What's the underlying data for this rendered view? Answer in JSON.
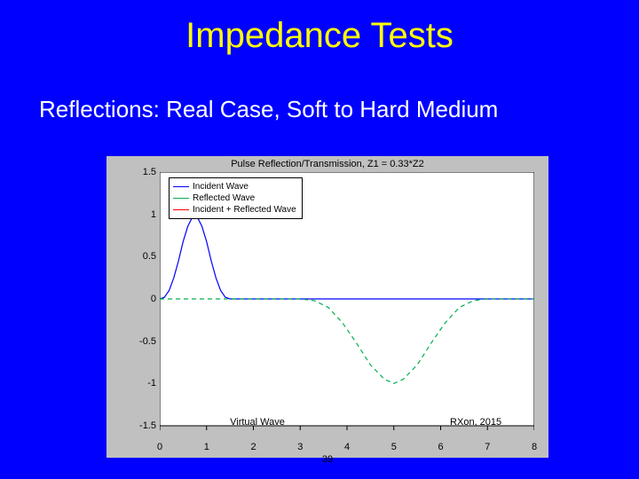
{
  "slide": {
    "background_color": "#0000ff",
    "title": "Impedance Tests",
    "title_color": "#ffff00",
    "subtitle": "Reflections: Real Case, Soft to Hard Medium",
    "subtitle_color": "#ffffff"
  },
  "figure": {
    "background_color": "#c0c0c0",
    "plot_background_color": "#ffffff",
    "axis_color": "#000000",
    "title": "Pulse Reflection/Transmission, Z1 = 0.33*Z2",
    "title_color": "#000000",
    "xlim": [
      0,
      8
    ],
    "ylim": [
      -1.5,
      1.5
    ],
    "xticks": [
      0,
      1,
      2,
      3,
      4,
      5,
      6,
      7,
      8
    ],
    "yticks": [
      -1.5,
      -1,
      -0.5,
      0,
      0.5,
      1,
      1.5
    ],
    "xlabel": "39",
    "legend": {
      "box_color": "#000000",
      "items": [
        {
          "label": "Incident Wave",
          "color": "#0000ff"
        },
        {
          "label": "Reflected Wave",
          "color": "#00b050"
        },
        {
          "label": "Incident + Reflected Wave",
          "color": "#ff0000"
        }
      ]
    },
    "annotations": {
      "virtual_wave": "Virtual Wave",
      "credit": "RXon, 2015"
    },
    "series": [
      {
        "name": "incident",
        "color": "#0000ff",
        "width": 1.2,
        "points": [
          [
            0.0,
            0.0
          ],
          [
            0.1,
            0.02
          ],
          [
            0.2,
            0.1
          ],
          [
            0.3,
            0.25
          ],
          [
            0.4,
            0.45
          ],
          [
            0.5,
            0.68
          ],
          [
            0.6,
            0.86
          ],
          [
            0.7,
            0.97
          ],
          [
            0.75,
            1.0
          ],
          [
            0.8,
            0.97
          ],
          [
            0.9,
            0.86
          ],
          [
            1.0,
            0.68
          ],
          [
            1.1,
            0.45
          ],
          [
            1.2,
            0.25
          ],
          [
            1.3,
            0.1
          ],
          [
            1.4,
            0.02
          ],
          [
            1.5,
            0.0
          ],
          [
            2.0,
            0.0
          ],
          [
            3.0,
            0.0
          ],
          [
            4.0,
            0.0
          ],
          [
            5.0,
            0.0
          ],
          [
            6.0,
            0.0
          ],
          [
            7.0,
            0.0
          ],
          [
            8.0,
            0.0
          ]
        ]
      },
      {
        "name": "reflected",
        "color": "#00b050",
        "width": 1.2,
        "dash": "5,4",
        "points": [
          [
            0.0,
            0.0
          ],
          [
            0.5,
            0.0
          ],
          [
            1.0,
            0.0
          ],
          [
            1.5,
            0.0
          ],
          [
            2.0,
            0.0
          ],
          [
            2.5,
            0.0
          ],
          [
            3.0,
            0.0
          ],
          [
            3.3,
            -0.02
          ],
          [
            3.6,
            -0.1
          ],
          [
            3.9,
            -0.28
          ],
          [
            4.2,
            -0.52
          ],
          [
            4.5,
            -0.78
          ],
          [
            4.8,
            -0.95
          ],
          [
            5.0,
            -1.0
          ],
          [
            5.2,
            -0.95
          ],
          [
            5.5,
            -0.78
          ],
          [
            5.8,
            -0.52
          ],
          [
            6.1,
            -0.28
          ],
          [
            6.4,
            -0.1
          ],
          [
            6.7,
            -0.02
          ],
          [
            7.0,
            0.0
          ],
          [
            8.0,
            0.0
          ]
        ]
      }
    ]
  }
}
